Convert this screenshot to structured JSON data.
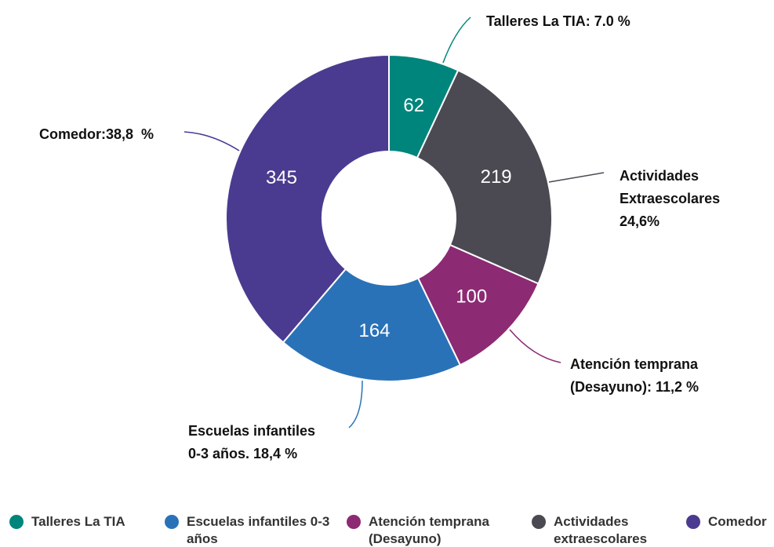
{
  "chart_data": {
    "type": "pie",
    "donut": true,
    "categories": [
      "Talleres La TIA",
      "Actividades extraescolares",
      "Atención temprana (Desayuno)",
      "Escuelas infantiles 0-3 años",
      "Comedor"
    ],
    "values": [
      62,
      219,
      100,
      164,
      345
    ],
    "colors": [
      "#00857c",
      "#4b4952",
      "#8c2a73",
      "#2a72b8",
      "#4a3b91"
    ],
    "annotations": [
      [
        "Talleres La TIA: 7.0 %"
      ],
      [
        "Actividades",
        "Extraescolares",
        "24,6%"
      ],
      [
        "Atención temprana",
        "(Desayuno): 11,2 %"
      ],
      [
        "Escuelas infantiles",
        "0-3 años. 18,4 %"
      ],
      [
        "Comedor:38,8  %"
      ]
    ]
  }
}
